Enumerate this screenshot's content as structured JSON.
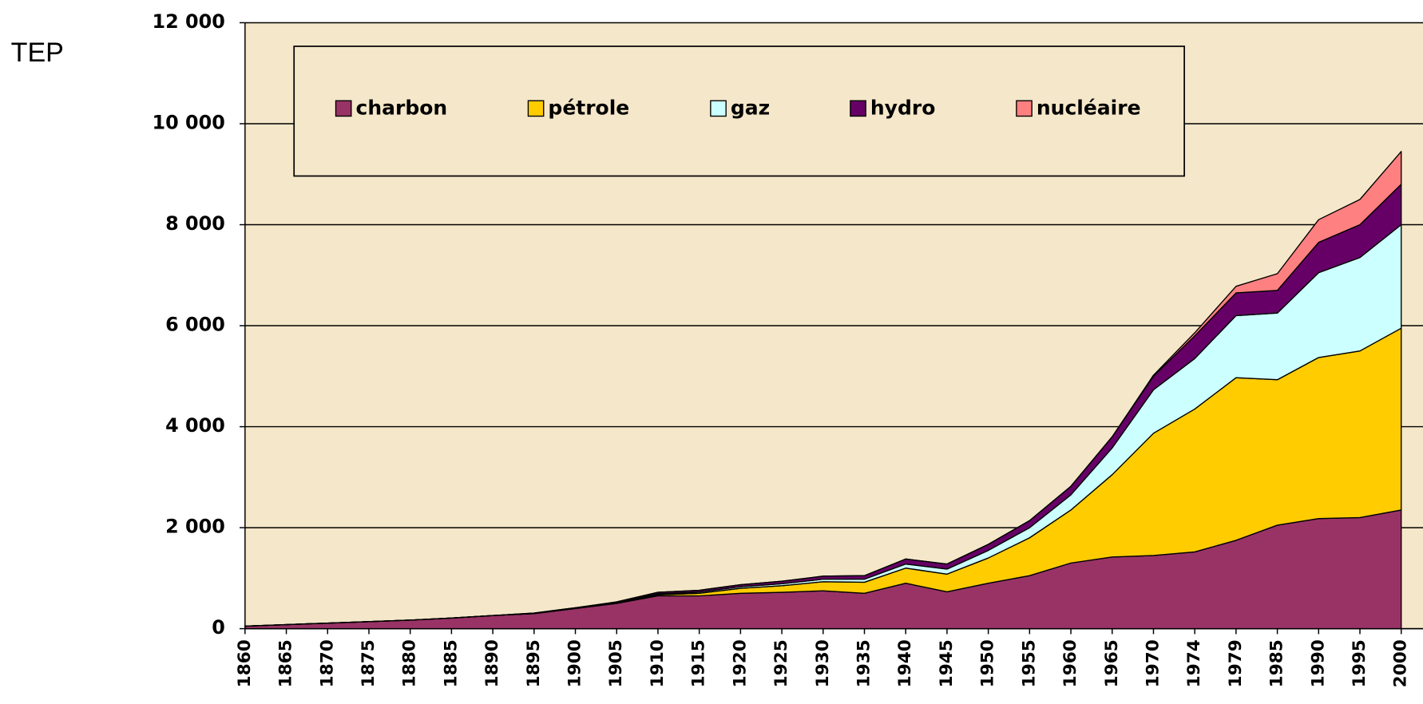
{
  "chart_data": {
    "type": "stacked_area",
    "ylabel": "TEP",
    "categories": [
      "1860",
      "1865",
      "1870",
      "1875",
      "1880",
      "1885",
      "1890",
      "1895",
      "1900",
      "1905",
      "1910",
      "1915",
      "1920",
      "1925",
      "1930",
      "1935",
      "1940",
      "1945",
      "1950",
      "1955",
      "1960",
      "1965",
      "1970",
      "1974",
      "1979",
      "1985",
      "1990",
      "1995",
      "2000"
    ],
    "series": [
      {
        "name": "charbon",
        "color": "#993366",
        "values": [
          50,
          80,
          110,
          140,
          170,
          210,
          260,
          300,
          400,
          500,
          650,
          650,
          700,
          720,
          750,
          700,
          900,
          730,
          900,
          1050,
          1300,
          1420,
          1450,
          1520,
          1750,
          2050,
          2180,
          2200,
          2350
        ]
      },
      {
        "name": "pétrole",
        "color": "#ffcc00",
        "values": [
          0,
          0,
          0,
          0,
          0,
          0,
          0,
          0,
          0,
          0,
          20,
          50,
          100,
          130,
          180,
          220,
          300,
          350,
          500,
          750,
          1050,
          1630,
          2420,
          2830,
          3220,
          2880,
          3190,
          3300,
          3600
        ]
      },
      {
        "name": "gaz",
        "color": "#ccffff",
        "values": [
          0,
          0,
          0,
          0,
          0,
          0,
          0,
          0,
          0,
          10,
          20,
          25,
          30,
          40,
          50,
          60,
          80,
          100,
          150,
          200,
          300,
          530,
          860,
          1000,
          1230,
          1320,
          1680,
          1850,
          2050
        ]
      },
      {
        "name": "hydro",
        "color": "#660066",
        "values": [
          0,
          0,
          0,
          0,
          0,
          0,
          0,
          10,
          15,
          20,
          30,
          35,
          40,
          50,
          60,
          70,
          100,
          100,
          120,
          140,
          170,
          220,
          270,
          450,
          450,
          450,
          600,
          650,
          800
        ]
      },
      {
        "name": "nucléaire",
        "color": "#ff8080",
        "values": [
          0,
          0,
          0,
          0,
          0,
          0,
          0,
          0,
          0,
          0,
          0,
          0,
          0,
          0,
          0,
          0,
          0,
          0,
          0,
          0,
          0,
          0,
          20,
          60,
          130,
          330,
          450,
          500,
          650
        ]
      }
    ],
    "ylim": [
      0,
      12000
    ],
    "yticks": [
      0,
      {
        "value": 2000,
        "label": "2 000"
      },
      {
        "value": 4000,
        "label": "4 000"
      },
      {
        "value": 6000,
        "label": "6 000"
      },
      {
        "value": 8000,
        "label": "8 000"
      },
      {
        "value": 10000,
        "label": "10 000"
      },
      {
        "value": 12000,
        "label": "12 000"
      }
    ],
    "grid": true,
    "background": "#f5e7c9"
  }
}
